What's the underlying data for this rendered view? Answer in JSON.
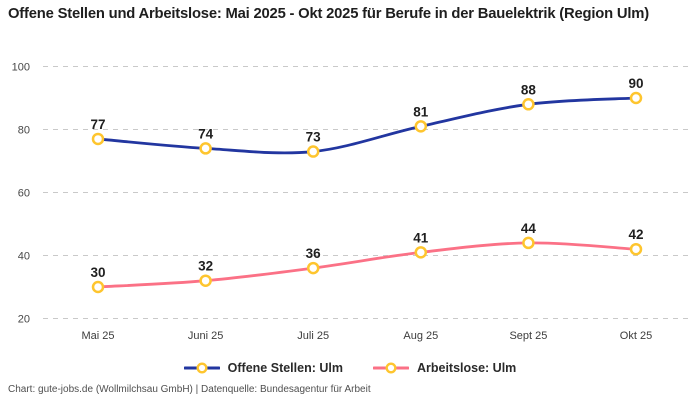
{
  "footer": "Chart: gute-jobs.de (Wollmilchsau GmbH) | Datenquelle: Bundesagentur für Arbeit",
  "chart_data": {
    "type": "line",
    "title": "Offene Stellen und Arbeitslose: Mai 2025 - Okt 2025 für Berufe in der Bauelektrik (Region Ulm)",
    "categories": [
      "Mai 25",
      "Juni 25",
      "Juli 25",
      "Aug 25",
      "Sept 25",
      "Okt 25"
    ],
    "series": [
      {
        "name": "Offene Stellen: Ulm",
        "values": [
          77,
          74,
          73,
          81,
          88,
          90
        ],
        "color": "#2236a0"
      },
      {
        "name": "Arbeitslose: Ulm",
        "values": [
          30,
          32,
          36,
          41,
          44,
          42
        ],
        "color": "#fb7186"
      }
    ],
    "yticks": [
      20,
      40,
      60,
      80,
      100
    ],
    "ylim": [
      20,
      100
    ],
    "xlabel": "",
    "ylabel": "",
    "grid": "horizontal-dashed",
    "grid_color": "#c9c9c9",
    "marker": {
      "fill": "#ffffff",
      "stroke": "#fec52e"
    },
    "data_labels": true,
    "data_label_color": "#1f1f1f",
    "tick_label_color": "#474747",
    "legend_position": "bottom",
    "line_style": "smooth"
  }
}
